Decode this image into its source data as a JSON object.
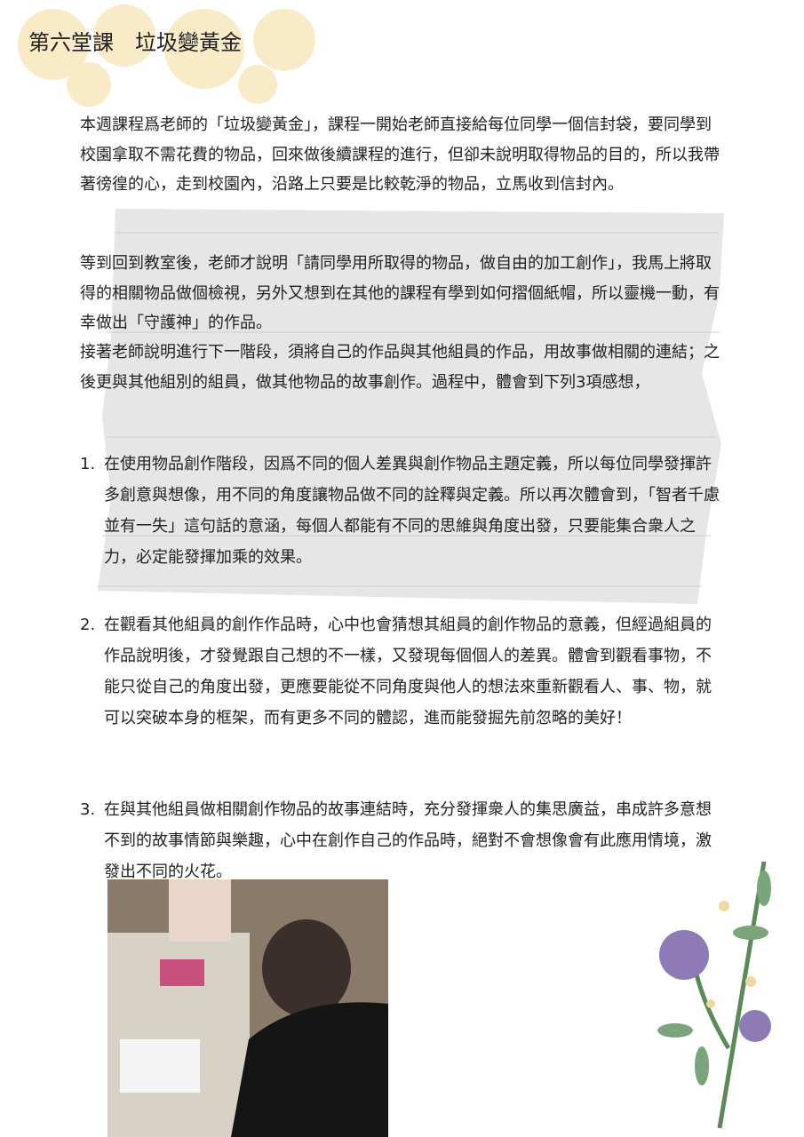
{
  "title": "第六堂課　垃圾變黃金",
  "paragraphs": [
    "本週課程爲老師的「垃圾變黃金」，課程一開始老師直接給每位同學一個信封袋，要同學到校園拿取不需花費的物品，回來做後續課程的進行，但卻未說明取得物品的目的，所以我帶著徬徨的心，走到校園內，沿路上只要是比較乾淨的物品，立馬收到信封內。",
    "等到回到教室後，老師才說明「請同學用所取得的物品，做自由的加工創作」，我馬上將取得的相關物品做個檢視，另外又想到在其他的課程有學到如何摺個紙帽，所以靈機一動，有幸做出「守護神」的作品。",
    "接著老師說明進行下一階段，須將自己的作品與其他組員的作品，用故事做相關的連結；之後更與其他組別的組員，做其他物品的故事創作。過程中，體會到下列3項感想，"
  ],
  "reflections": [
    {
      "number": "1.",
      "text": "在使用物品創作階段，因爲不同的個人差異與創作物品主題定義，所以每位同學發揮許多創意與想像，用不同的角度讓物品做不同的詮釋與定義。所以再次體會到，「智者千慮並有一失」這句話的意涵，每個人都能有不同的思維與角度出發，只要能集合衆人之力，必定能發揮加乘的效果。"
    },
    {
      "number": "2.",
      "text": "在觀看其他組員的創作作品時，心中也會猜想其組員的創作物品的意義，但經過組員的作品說明後，才發覺跟自己想的不一樣，又發現每個個人的差異。體會到觀看事物，不能只從自己的角度出發，更應要能從不同角度與他人的想法來重新觀看人、事、物，就可以突破本身的框架，而有更多不同的體認，進而能發掘先前忽略的美好！"
    },
    {
      "number": "3.",
      "text": "在與其他組員做相關創作物品的故事連結時，充分發揮衆人的集思廣益，串成許多意想不到的故事情節與樂趣，心中在創作自己的作品時，絕對不會想像會有此應用情境，激發出不同的火花。"
    }
  ]
}
